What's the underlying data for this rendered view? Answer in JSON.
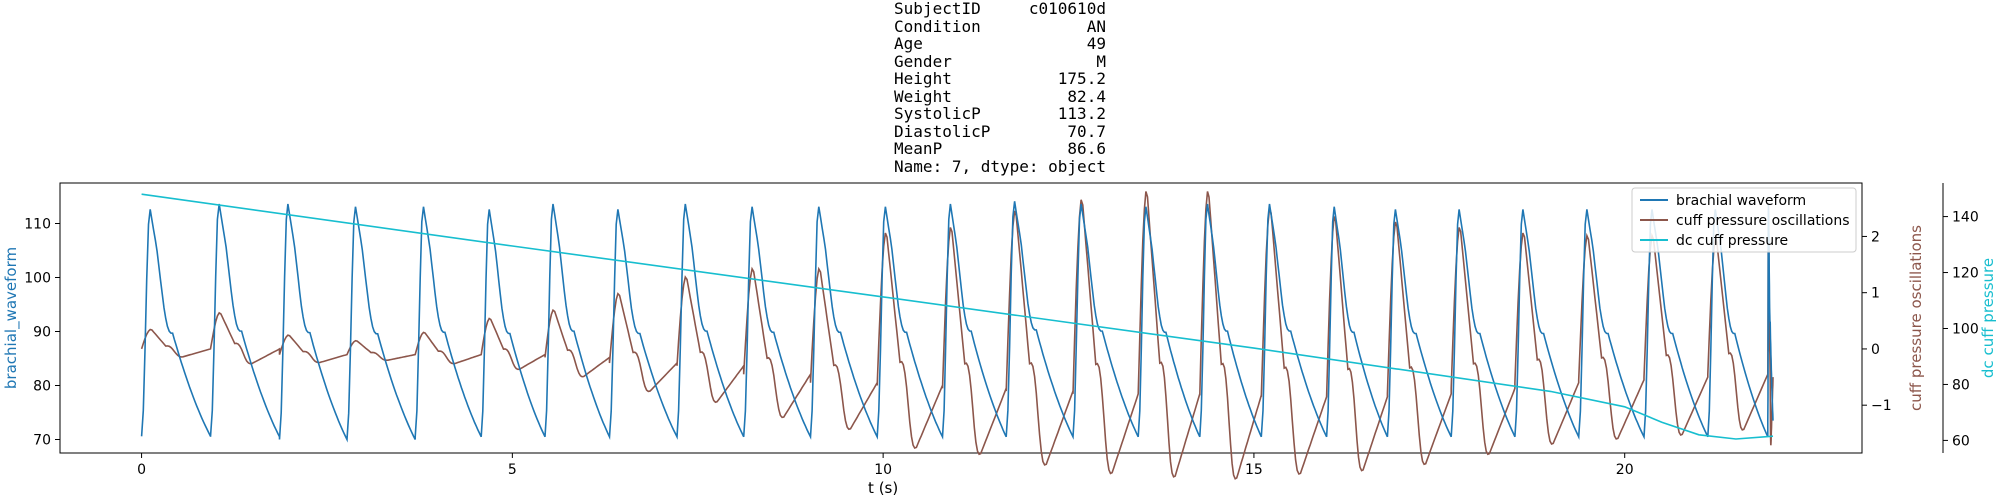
{
  "title_lines": [
    "SubjectID     c010610d",
    "Condition           AN",
    "Age                 49",
    "Gender               M",
    "Height           175.2",
    "Weight            82.4",
    "SystolicP        113.2",
    "DiastolicP        70.7",
    "MeanP             86.6",
    "Name: 7, dtype: object"
  ],
  "chart_data": {
    "type": "line",
    "title": "SubjectID     c010610d\nCondition           AN\nAge                 49\nGender               M\nHeight           175.2\nWeight            82.4\nSystolicP        113.2\nDiastolicP        70.7\nMeanP             86.6\nName: 7, dtype: object",
    "xlabel": "t (s)",
    "xlim": [
      -1.1,
      23.2
    ],
    "xticks": [
      0,
      5,
      10,
      15,
      20
    ],
    "legend_position": "top-right",
    "grid": false,
    "axes": [
      {
        "id": "left",
        "label": "brachial_waveform",
        "color": "#1f77b4",
        "ylim": [
          67.5,
          117.5
        ],
        "ticks": [
          70,
          80,
          90,
          100,
          110
        ]
      },
      {
        "id": "right1",
        "label": "cuff pressure oscillations",
        "color": "#8c564b",
        "ylim": [
          -1.85,
          2.95
        ],
        "ticks": [
          -1,
          0,
          1,
          2
        ]
      },
      {
        "id": "right2",
        "label": "dc cuff pressure",
        "color": "#17becf",
        "ylim": [
          55.5,
          152
        ],
        "ticks": [
          60,
          80,
          100,
          120,
          140
        ]
      }
    ],
    "series": [
      {
        "name": "brachial waveform",
        "axis": "left",
        "color": "#1f77b4",
        "beats_t": [
          0.0,
          0.93,
          1.86,
          2.77,
          3.69,
          4.58,
          5.44,
          6.31,
          7.22,
          8.12,
          9.02,
          9.92,
          10.8,
          11.66,
          12.56,
          13.44,
          14.27,
          15.1,
          15.98,
          16.8,
          17.66,
          18.52,
          19.38,
          20.26,
          21.12,
          21.93
        ],
        "peaks": [
          113,
          114,
          114,
          113.5,
          113.5,
          113,
          114,
          113,
          114,
          113.5,
          113.5,
          113.5,
          114,
          114.5,
          114,
          113.5,
          114,
          114,
          113.5,
          113,
          113,
          113,
          113,
          113,
          113,
          114
        ],
        "troughs": [
          70.6,
          70.5,
          70,
          70,
          70.5,
          70.5,
          70.5,
          70.5,
          70.5,
          70.5,
          70.5,
          70.5,
          70.5,
          70.5,
          70.5,
          70.5,
          70.5,
          70.5,
          70.5,
          70.5,
          70.5,
          70.5,
          70.5,
          70.5,
          70.5,
          73.5
        ]
      },
      {
        "name": "cuff pressure oscillations",
        "axis": "right1",
        "color": "#8c564b",
        "amplitudes": [
          0.35,
          0.65,
          0.25,
          0.15,
          0.3,
          0.55,
          0.7,
          1.0,
          1.3,
          1.45,
          1.45,
          2.1,
          2.2,
          2.5,
          2.7,
          2.85,
          2.85,
          2.55,
          2.4,
          2.3,
          2.2,
          2.1,
          2.05,
          2.05,
          2.0,
          2.5
        ],
        "troughs": [
          0,
          0,
          -0.2,
          -0.2,
          -0.2,
          -0.2,
          -0.3,
          -0.5,
          -0.6,
          -0.9,
          -1.2,
          -1.3,
          -1.4,
          -1.5,
          -1.6,
          -1.6,
          -1.65,
          -1.7,
          -1.7,
          -1.6,
          -1.4,
          -1.2,
          -1.1,
          -1.0,
          -0.9,
          -1.0
        ]
      },
      {
        "name": "dc cuff pressure",
        "axis": "right2",
        "color": "#17becf",
        "x": [
          0,
          5,
          10,
          15,
          19,
          20,
          20.5,
          21,
          21.5,
          22
        ],
        "y": [
          148,
          129.5,
          111.3,
          93,
          77.5,
          72,
          66.5,
          62,
          60.5,
          61.5
        ]
      }
    ],
    "legend": [
      "brachial waveform",
      "cuff pressure oscillations",
      "dc cuff pressure"
    ]
  }
}
